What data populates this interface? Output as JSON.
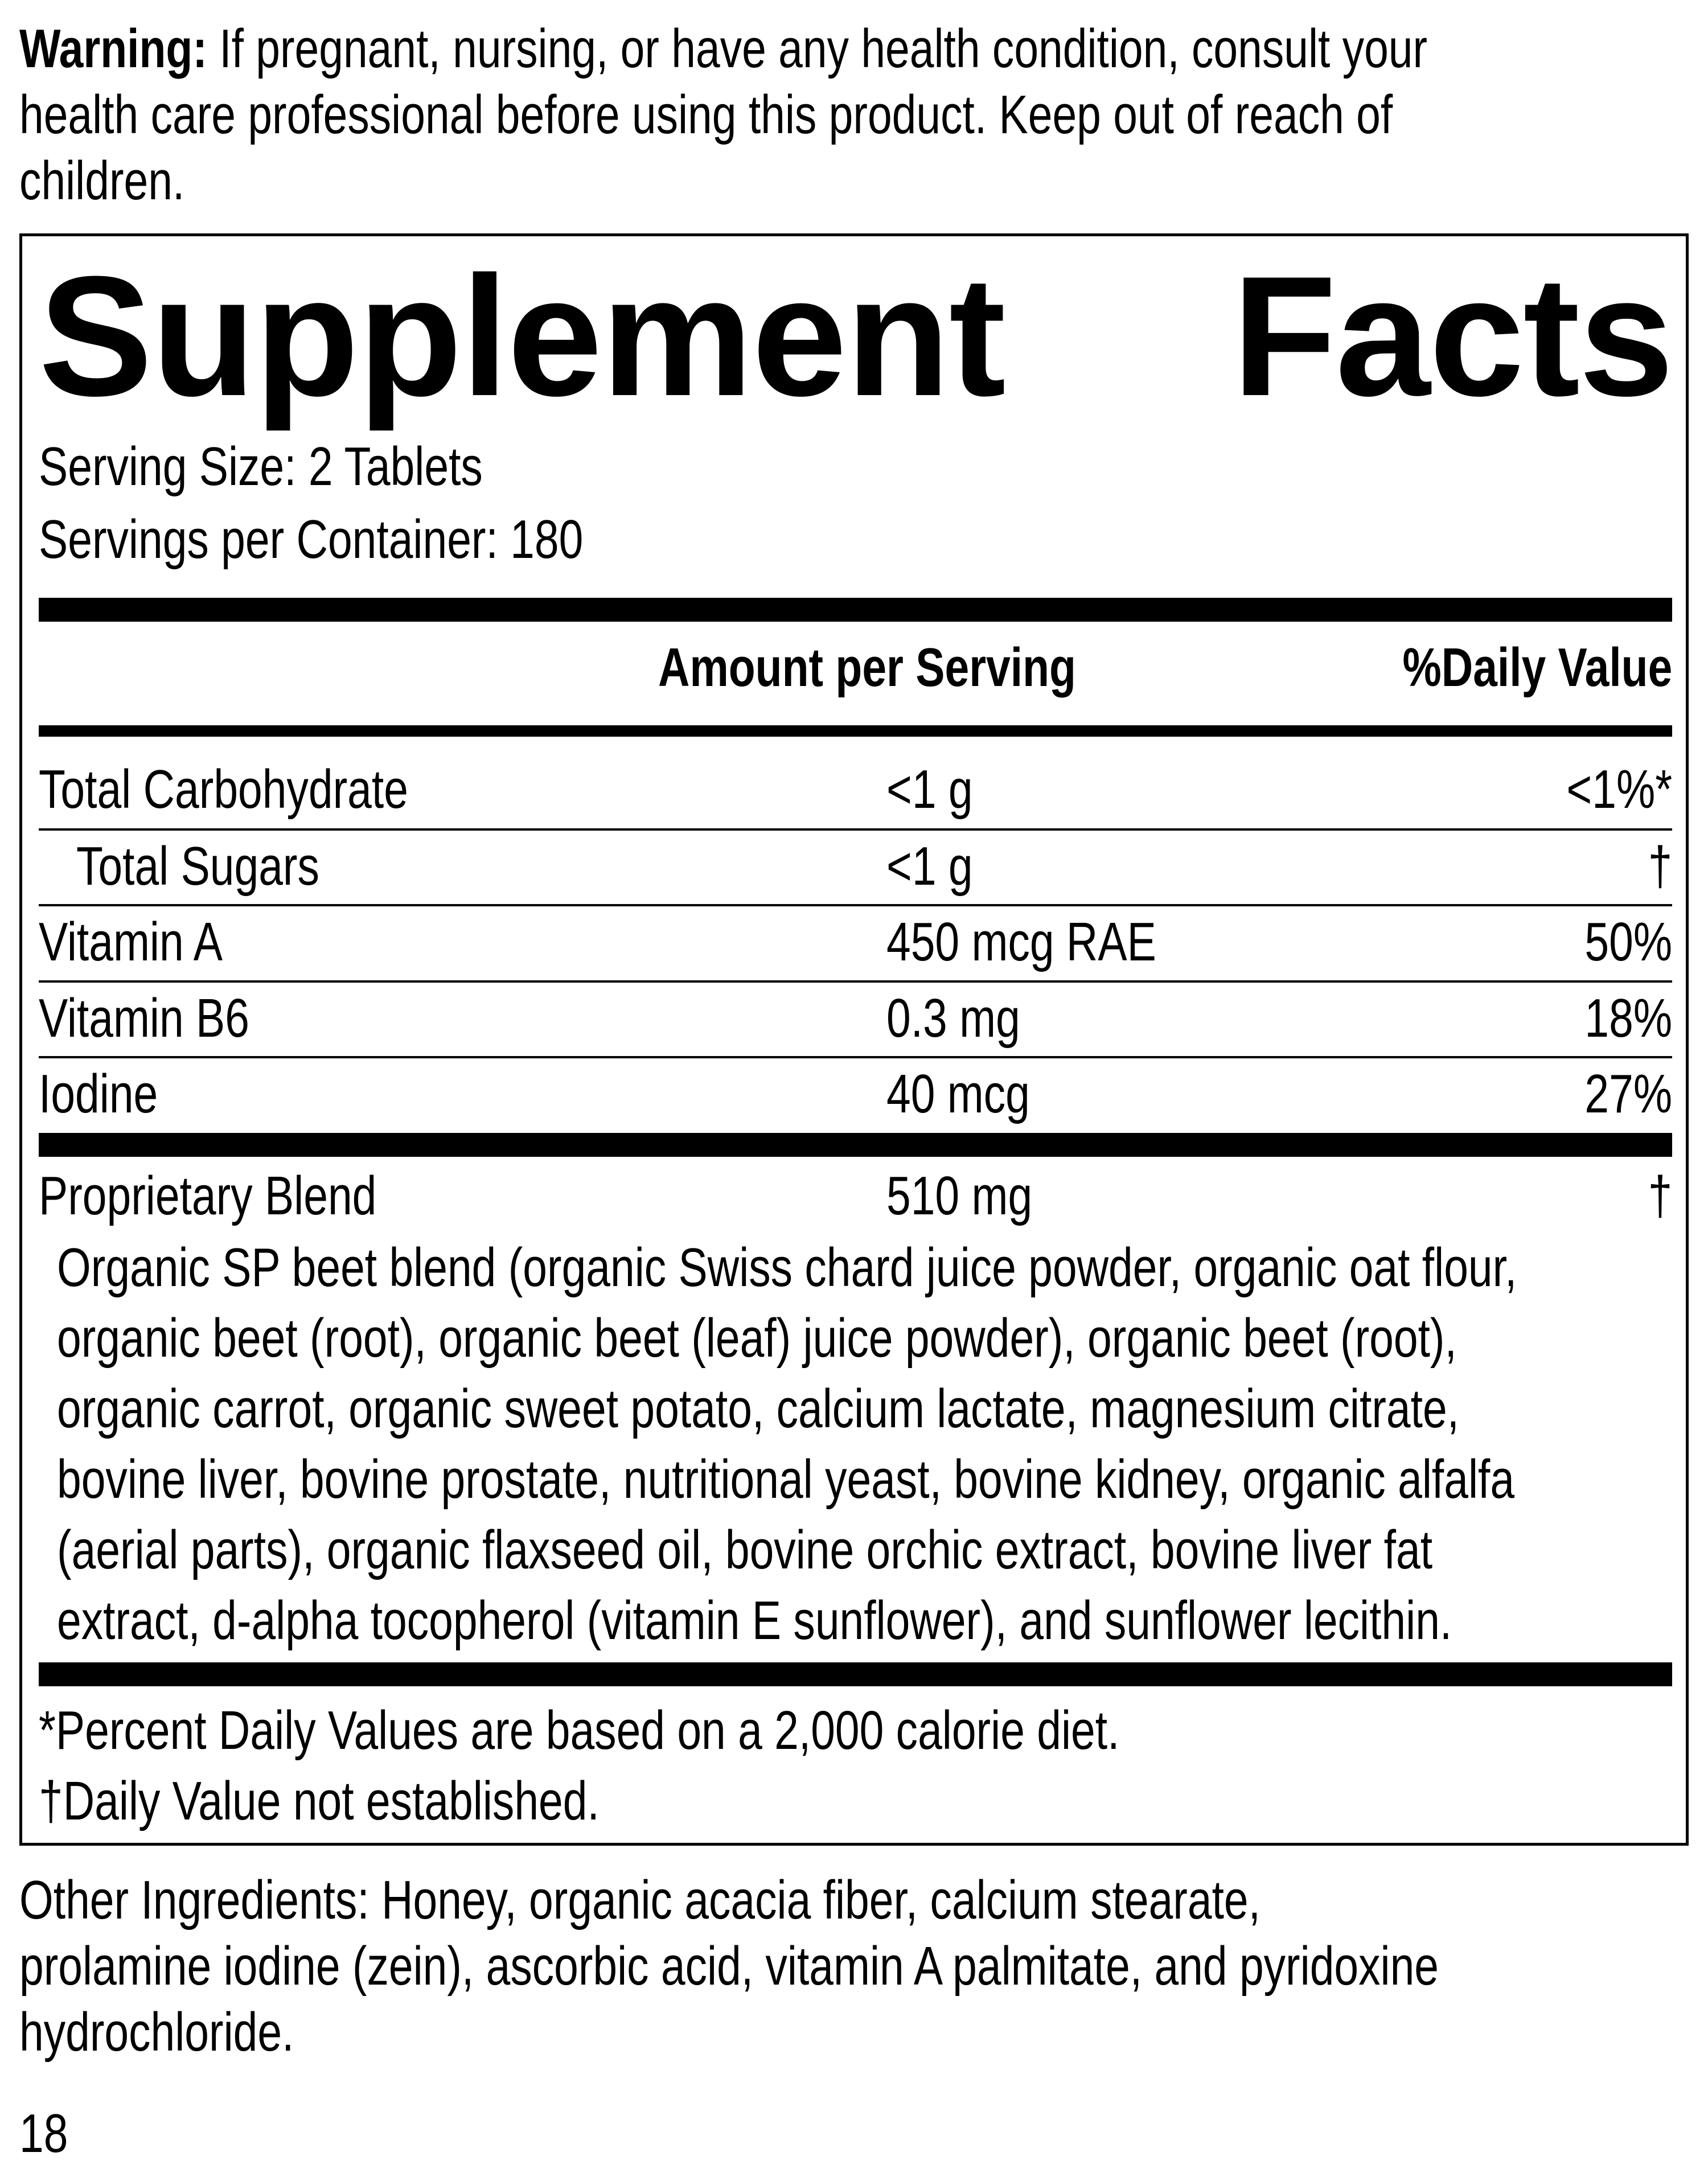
{
  "warning": {
    "label": "Warning:",
    "lines": [
      "If pregnant, nursing, or have any health condition, consult your",
      "health care professional before using this product. Keep out of reach of",
      "children."
    ]
  },
  "facts": {
    "title_word1": "Supplement",
    "title_word2": "Facts",
    "serving_size": "Serving Size: 2 Tablets",
    "servings_per_container": "Servings per Container: 180",
    "header": {
      "amount": "Amount per Serving",
      "dv": "%Daily Value"
    },
    "rows": [
      {
        "name": "Total Carbohydrate",
        "amount": "<1 g",
        "dv": "<1%*"
      },
      {
        "name": "Total Sugars",
        "amount": "<1 g",
        "dv": "†"
      },
      {
        "name": "Vitamin A",
        "amount": "450 mcg RAE",
        "dv": "50%"
      },
      {
        "name": "Vitamin B6",
        "amount": "0.3 mg",
        "dv": "18%"
      },
      {
        "name": "Iodine",
        "amount": "40 mcg",
        "dv": "27%"
      }
    ],
    "blend": {
      "name": "Proprietary Blend",
      "amount": "510 mg",
      "dv": "†",
      "lines": [
        "Organic SP beet blend (organic Swiss chard juice powder, organic oat flour,",
        "organic beet (root), organic beet (leaf) juice powder), organic beet (root),",
        "organic carrot, organic sweet potato, calcium lactate, magnesium citrate,",
        "bovine liver, bovine prostate, nutritional yeast, bovine kidney, organic alfalfa",
        "(aerial parts), organic flaxseed oil, bovine orchic extract, bovine liver fat",
        "extract, d-alpha tocopherol (vitamin E sunflower), and sunflower lecithin."
      ]
    },
    "footnotes": [
      "*Percent Daily Values are based on a 2,000 calorie diet.",
      "†Daily Value not established."
    ]
  },
  "other_ingredients": {
    "lines": [
      "Other Ingredients: Honey, organic acacia fiber, calcium stearate,",
      "prolamine iodine (zein), ascorbic acid, vitamin A palmitate, and pyridoxine",
      "hydrochloride."
    ]
  },
  "page_number": "18"
}
